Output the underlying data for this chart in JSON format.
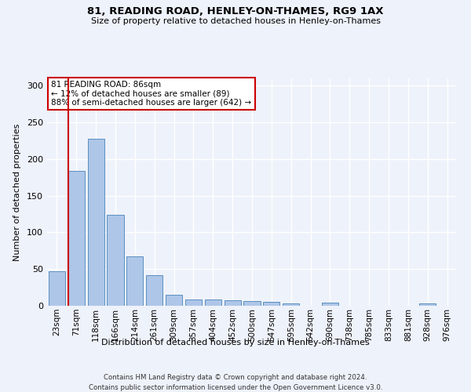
{
  "title": "81, READING ROAD, HENLEY-ON-THAMES, RG9 1AX",
  "subtitle": "Size of property relative to detached houses in Henley-on-Thames",
  "xlabel": "Distribution of detached houses by size in Henley-on-Thames",
  "ylabel": "Number of detached properties",
  "categories": [
    "23sqm",
    "71sqm",
    "118sqm",
    "166sqm",
    "214sqm",
    "261sqm",
    "309sqm",
    "357sqm",
    "404sqm",
    "452sqm",
    "500sqm",
    "547sqm",
    "595sqm",
    "642sqm",
    "690sqm",
    "738sqm",
    "785sqm",
    "833sqm",
    "881sqm",
    "928sqm",
    "976sqm"
  ],
  "values": [
    47,
    184,
    228,
    124,
    67,
    42,
    15,
    9,
    9,
    7,
    6,
    5,
    3,
    0,
    4,
    0,
    0,
    0,
    0,
    3,
    0
  ],
  "bar_color": "#aec6e8",
  "bar_edge_color": "#5a8fc0",
  "background_color": "#eef2fa",
  "grid_color": "#ffffff",
  "annotation_text": "81 READING ROAD: 86sqm\n← 12% of detached houses are smaller (89)\n88% of semi-detached houses are larger (642) →",
  "annotation_box_color": "#ffffff",
  "annotation_box_edge": "#cc0000",
  "red_line_color": "#cc0000",
  "footer_line1": "Contains HM Land Registry data © Crown copyright and database right 2024.",
  "footer_line2": "Contains public sector information licensed under the Open Government Licence v3.0.",
  "ylim": [
    0,
    310
  ],
  "yticks": [
    0,
    50,
    100,
    150,
    200,
    250,
    300
  ]
}
